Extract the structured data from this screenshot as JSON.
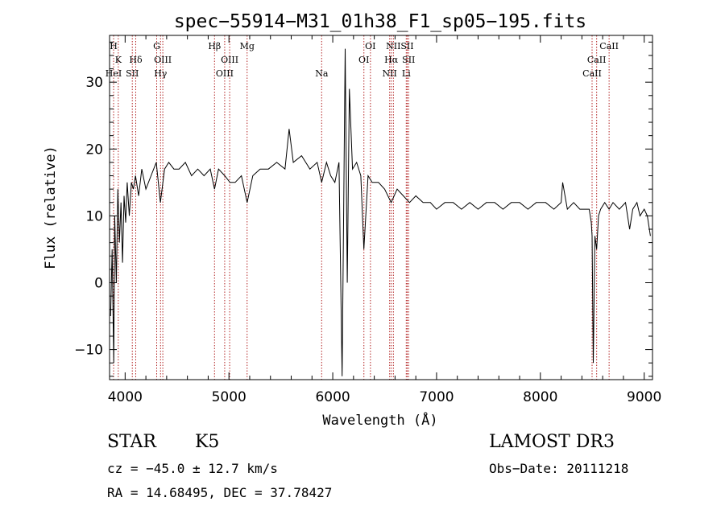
{
  "chart_data": {
    "type": "line",
    "title": "spec−55914−M31_01h38_F1_sp05−195.fits",
    "xlabel": "Wavelength (Å)",
    "ylabel": "Flux (relative)",
    "xlim": [
      3850,
      9080
    ],
    "ylim": [
      -14.5,
      37.0
    ],
    "xticks": [
      4000,
      5000,
      6000,
      7000,
      8000,
      9000
    ],
    "yticks": [
      -10,
      0,
      10,
      20,
      30
    ],
    "ytick_labels": [
      "−10",
      "0",
      "10",
      "20",
      "30"
    ],
    "grid": false,
    "series": [
      {
        "x": [
          3860,
          3875,
          3890,
          3900,
          3915,
          3930,
          3945,
          3960,
          3975,
          3990,
          4005,
          4020,
          4040,
          4060,
          4080,
          4100,
          4130,
          4160,
          4200,
          4250,
          4300,
          4340,
          4380,
          4420,
          4470,
          4520,
          4580,
          4640,
          4700,
          4760,
          4820,
          4861,
          4900,
          4960,
          5010,
          5060,
          5120,
          5175,
          5230,
          5300,
          5380,
          5460,
          5540,
          5580,
          5620,
          5700,
          5780,
          5850,
          5893,
          5940,
          5980,
          6020,
          6060,
          6090,
          6120,
          6140,
          6160,
          6190,
          6230,
          6270,
          6300,
          6340,
          6380,
          6440,
          6500,
          6563,
          6620,
          6680,
          6740,
          6800,
          6870,
          6940,
          7000,
          7080,
          7160,
          7240,
          7320,
          7400,
          7480,
          7560,
          7640,
          7720,
          7800,
          7880,
          7960,
          8050,
          8130,
          8200,
          8215,
          8260,
          8320,
          8380,
          8440,
          8470,
          8490,
          8498,
          8510,
          8525,
          8542,
          8560,
          8580,
          8620,
          8662,
          8700,
          8760,
          8820,
          8860,
          8890,
          8930,
          8960,
          9000,
          9030,
          9060
        ],
        "y": [
          -5,
          5,
          -12,
          10,
          0,
          14,
          6,
          12,
          3,
          13,
          9,
          15,
          10,
          15,
          14,
          16,
          13,
          17,
          14,
          16,
          18,
          12,
          17,
          18,
          17,
          17,
          18,
          16,
          17,
          16,
          17,
          14,
          17,
          16,
          15,
          15,
          16,
          12,
          16,
          17,
          17,
          18,
          17,
          23,
          18,
          19,
          17,
          18,
          15,
          18,
          16,
          15,
          18,
          -14,
          35,
          0,
          29,
          17,
          18,
          16,
          5,
          16,
          15,
          15,
          14,
          12,
          14,
          13,
          12,
          13,
          12,
          12,
          11,
          12,
          12,
          11,
          12,
          11,
          12,
          12,
          11,
          12,
          12,
          11,
          12,
          12,
          11,
          12,
          15,
          11,
          12,
          11,
          11,
          11,
          9,
          7,
          -12,
          7,
          5,
          10,
          11,
          12,
          11,
          12,
          11,
          12,
          8,
          11,
          12,
          10,
          11,
          10,
          7
        ]
      }
    ],
    "spectral_lines": [
      {
        "label": "H",
        "wavelength": 3889,
        "row": 0
      },
      {
        "label": "K",
        "wavelength": 3934,
        "row": 1
      },
      {
        "label": "HeI",
        "wavelength": 3889,
        "row": 2
      },
      {
        "label": "SII",
        "wavelength": 4069,
        "row": 2
      },
      {
        "label": "Hδ",
        "wavelength": 4102,
        "row": 1
      },
      {
        "label": "G",
        "wavelength": 4304,
        "row": 0
      },
      {
        "label": "OIII",
        "wavelength": 4363,
        "row": 1
      },
      {
        "label": "Hγ",
        "wavelength": 4341,
        "row": 2
      },
      {
        "label": "Hβ",
        "wavelength": 4861,
        "row": 0
      },
      {
        "label": "OIII",
        "wavelength": 5007,
        "row": 1
      },
      {
        "label": "OIII",
        "wavelength": 4959,
        "row": 2
      },
      {
        "label": "Mg",
        "wavelength": 5175,
        "row": 0
      },
      {
        "label": "Na",
        "wavelength": 5893,
        "row": 2
      },
      {
        "label": "OI",
        "wavelength": 6363,
        "row": 0
      },
      {
        "label": "OI",
        "wavelength": 6300,
        "row": 1
      },
      {
        "label": "NII",
        "wavelength": 6584,
        "row": 0
      },
      {
        "label": "SII",
        "wavelength": 6717,
        "row": 0
      },
      {
        "label": "Hα",
        "wavelength": 6563,
        "row": 1
      },
      {
        "label": "SII",
        "wavelength": 6731,
        "row": 1
      },
      {
        "label": "NII",
        "wavelength": 6548,
        "row": 2
      },
      {
        "label": "Li",
        "wavelength": 6708,
        "row": 2
      },
      {
        "label": "CaII",
        "wavelength": 8662,
        "row": 0
      },
      {
        "label": "CaII",
        "wavelength": 8542,
        "row": 1
      },
      {
        "label": "CaII",
        "wavelength": 8498,
        "row": 2
      }
    ],
    "line_color": "#000000",
    "marker_color": "#b22222"
  },
  "info": {
    "object_class": "STAR",
    "subclass": "K5",
    "survey": "LAMOST DR3",
    "redshift_text": "cz = −45.0 ± 12.7 km/s",
    "obs_date_text": "Obs−Date: 20111218",
    "coords_text": "RA =  14.68495, DEC =  37.78427"
  }
}
